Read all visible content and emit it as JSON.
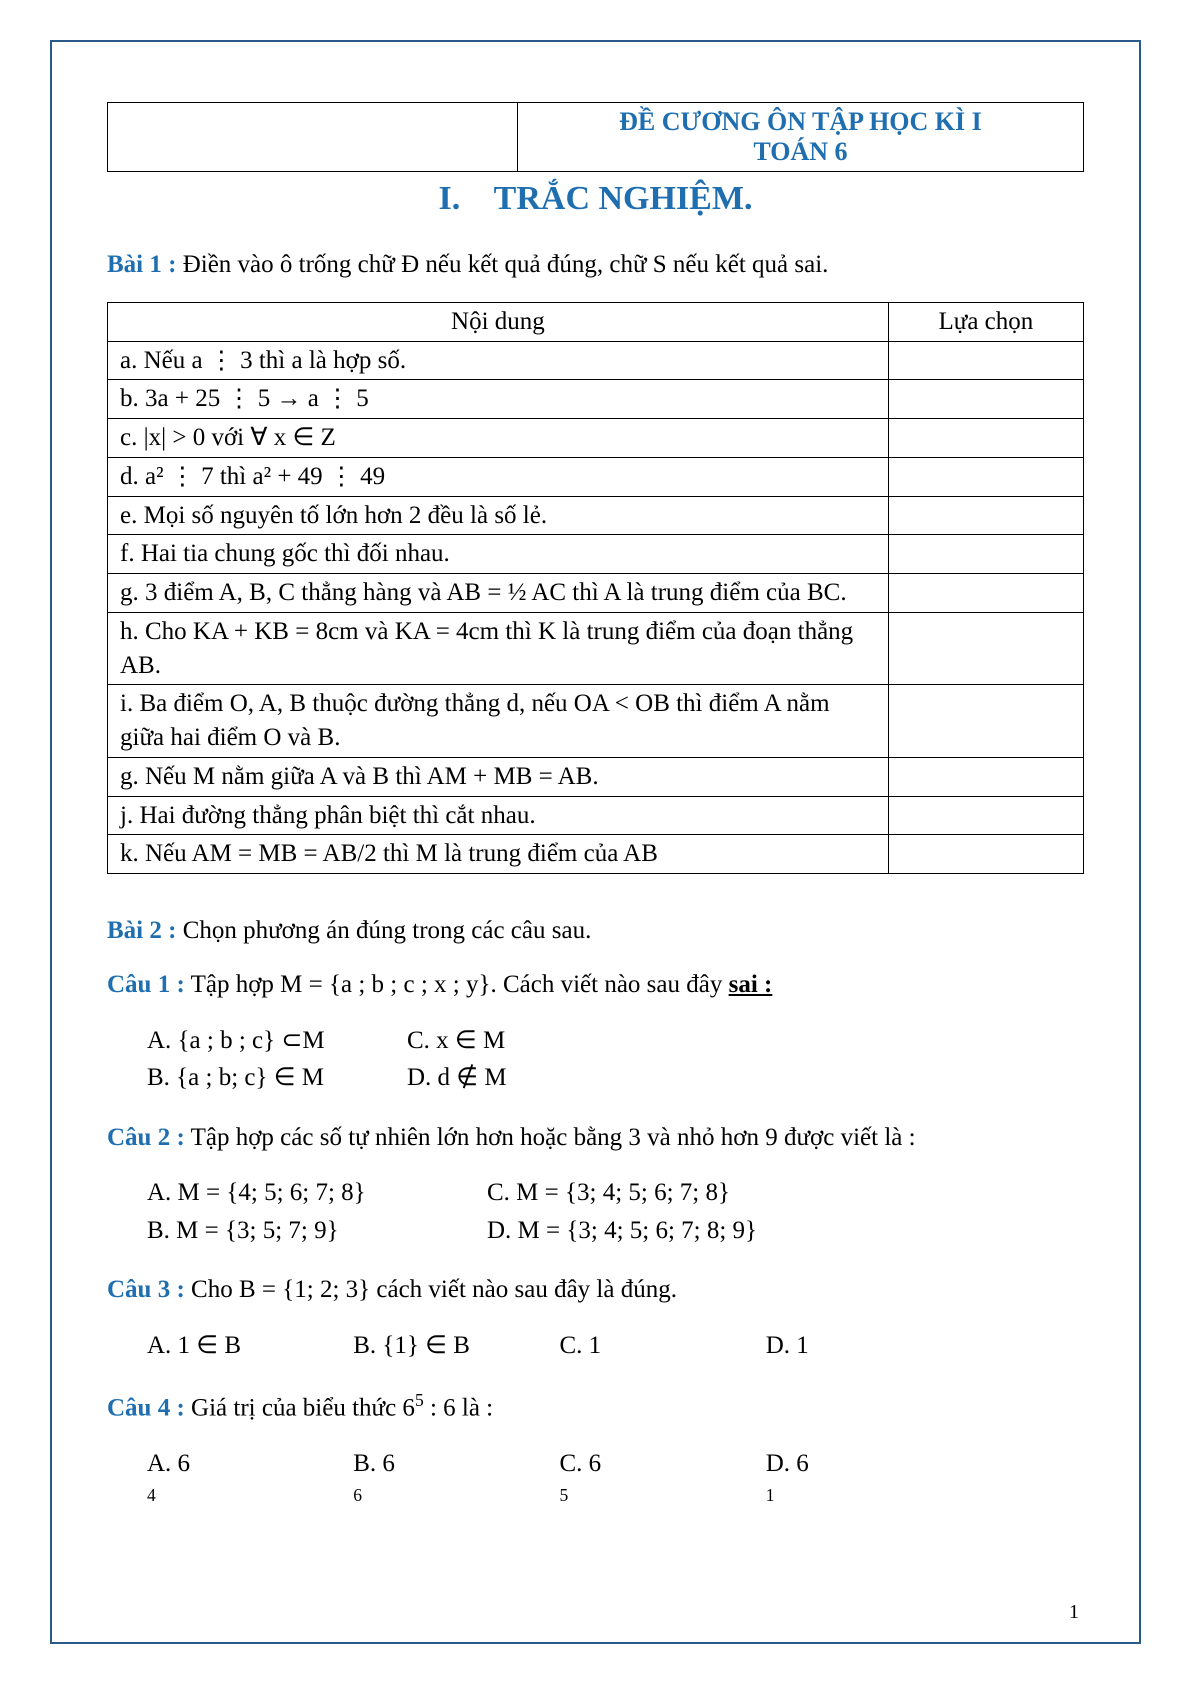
{
  "header": {
    "title_line1": "ĐỀ CƯƠNG ÔN TẬP HỌC KÌ I",
    "title_line2": "TOÁN 6"
  },
  "section1": {
    "number": "I.",
    "title": "TRẮC NGHIỆM."
  },
  "bai1": {
    "label": "Bài 1 :",
    "text": " Điền vào ô trống chữ Đ nếu kết quả đúng, chữ S nếu kết quả sai.",
    "th_nd": "Nội dung",
    "th_lc": "Lựa chọn",
    "rows": [
      "a.  Nếu a ⋮ 3 thì a là hợp số.",
      "b.  3a + 25 ⋮ 5 → a ⋮ 5",
      "c.  |x| > 0 với ∀ x ∈ Z",
      "d.  a² ⋮ 7 thì a² + 49 ⋮ 49",
      "e.  Mọi số nguyên tố lớn hơn 2 đều là số lẻ.",
      "f.  Hai tia chung gốc thì đối nhau.",
      "g.  3 điểm A, B, C thẳng hàng và AB = ½ AC thì A là trung điểm của BC.",
      "h.  Cho KA + KB = 8cm và KA = 4cm thì K là trung điểm của đoạn thẳng AB.",
      "i.  Ba điểm O, A, B thuộc đường thẳng d, nếu OA < OB thì điểm A nằm giữa hai điểm O và B.",
      "g.  Nếu M nằm giữa A và B thì AM + MB = AB.",
      "j.  Hai đường thẳng phân biệt thì cắt nhau.",
      "k.  Nếu AM = MB = AB/2 thì M là trung điểm của AB"
    ]
  },
  "bai2": {
    "label": "Bài 2 :",
    "text": " Chọn phương án đúng trong các câu sau."
  },
  "cau1": {
    "label": "Câu 1 :",
    "text_pre": " Tập hợp M = {a ; b ; c ; x ; y}. Cách viết nào sau đây ",
    "sai": "sai :",
    "A": "A. {a ; b ; c} ⊂M",
    "B": "B. {a ; b; c} ∈ M",
    "C": "C. x ∈ M",
    "D": "D. d ∉ M"
  },
  "cau2": {
    "label": "Câu 2 :",
    "text": " Tập hợp các số tự nhiên lớn hơn hoặc bằng 3 và nhỏ hơn 9 được viết là :",
    "A": "A. M = {4; 5; 6; 7; 8}",
    "B": "B.  M = {3; 5; 7; 9}",
    "C": "C. M = {3; 4; 5; 6; 7; 8}",
    "D": "D. M = {3; 4; 5; 6; 7; 8; 9}"
  },
  "cau3": {
    "label": "Câu 3 :",
    "text": " Cho B = {1; 2; 3} cách viết nào sau đây là đúng.",
    "A": "A. 1 ∈ B",
    "B": "B. {1} ∈ B",
    "C": "C. 1",
    "D": "D. 1"
  },
  "cau4": {
    "label": "Câu 4 :",
    "text_pre": " Giá trị của biểu thức 6",
    "exp": "5",
    "text_post": " : 6 là :",
    "A_pre": "A. 6",
    "A_exp": "4",
    "B_pre": "B. 6",
    "B_exp": "6",
    "C_pre": "C. 6",
    "C_exp": "5",
    "D_pre": "D. 6",
    "D_exp": "1"
  },
  "page_number": "1"
}
